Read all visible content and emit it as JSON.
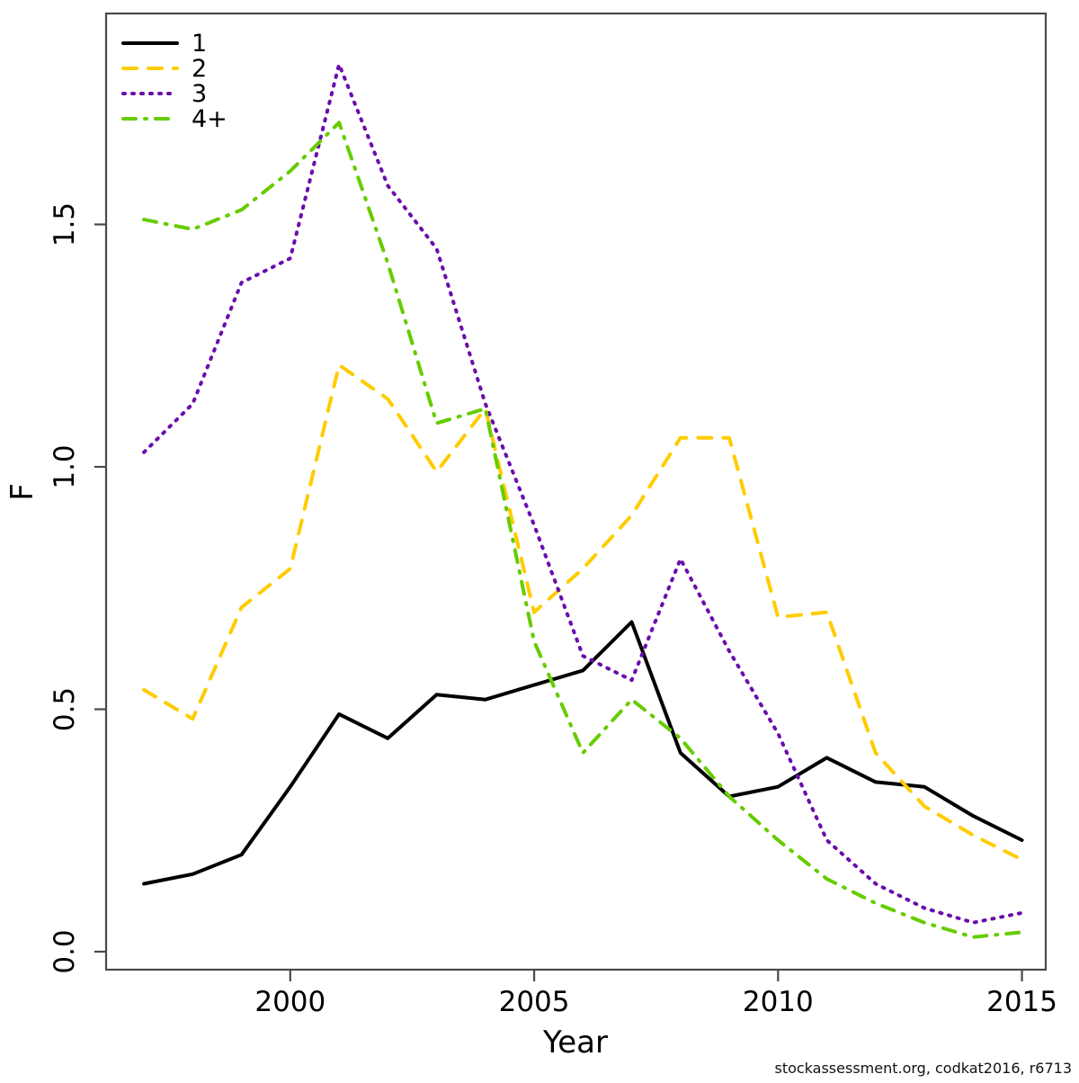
{
  "figure": {
    "watermark": "stockassessment.org, codkat2016, r6713"
  },
  "chart_data": {
    "type": "line",
    "title": "",
    "xlabel": "Year",
    "ylabel": "F",
    "x": [
      1997,
      1998,
      1999,
      2000,
      2001,
      2002,
      2003,
      2004,
      2005,
      2006,
      2007,
      2008,
      2009,
      2010,
      2011,
      2012,
      2013,
      2014,
      2015
    ],
    "xticks": [
      2000,
      2005,
      2010,
      2015
    ],
    "yticks": [
      0.0,
      0.5,
      1.0,
      1.5
    ],
    "ytick_labels": [
      "0.0",
      "0.5",
      "1.0",
      "1.5"
    ],
    "ylim": [
      0,
      1.9
    ],
    "grid": false,
    "legend_position": "top-left",
    "axis_color": "#4a4a4a",
    "series": [
      {
        "name": "1",
        "color": "#000000",
        "style": "solid",
        "values": [
          0.14,
          0.16,
          0.2,
          0.34,
          0.49,
          0.44,
          0.53,
          0.52,
          0.55,
          0.58,
          0.68,
          0.41,
          0.32,
          0.34,
          0.4,
          0.35,
          0.34,
          0.28,
          0.23
        ]
      },
      {
        "name": "2",
        "color": "#FFCC00",
        "style": "dashed",
        "values": [
          0.54,
          0.48,
          0.71,
          0.79,
          1.21,
          1.14,
          0.99,
          1.12,
          0.7,
          0.79,
          0.9,
          1.06,
          1.06,
          0.69,
          0.7,
          0.41,
          0.3,
          0.24,
          0.19
        ]
      },
      {
        "name": "3",
        "color": "#6A0DAD",
        "style": "dotted",
        "values": [
          1.03,
          1.13,
          1.38,
          1.43,
          1.83,
          1.58,
          1.45,
          1.13,
          0.88,
          0.61,
          0.56,
          0.81,
          0.62,
          0.45,
          0.23,
          0.14,
          0.09,
          0.06,
          0.08
        ]
      },
      {
        "name": "4+",
        "color": "#66CC00",
        "style": "dashdot",
        "values": [
          1.51,
          1.49,
          1.53,
          1.61,
          1.71,
          1.42,
          1.09,
          1.12,
          0.64,
          0.41,
          0.52,
          0.44,
          0.32,
          0.23,
          0.15,
          0.1,
          0.06,
          0.03,
          0.04
        ]
      }
    ]
  }
}
